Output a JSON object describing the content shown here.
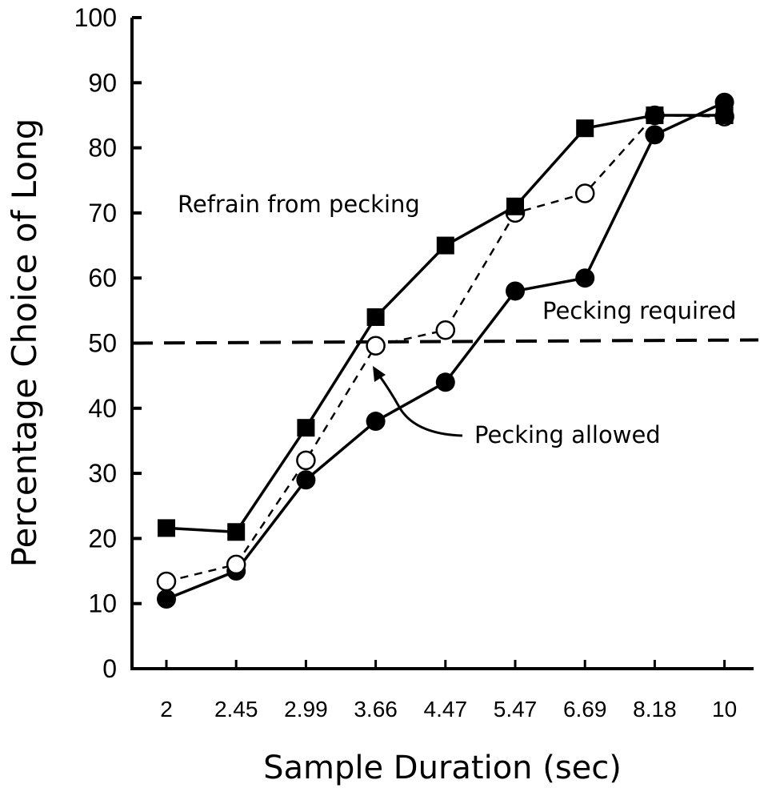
{
  "chart_data": {
    "type": "line",
    "xlabel": "Sample Duration (sec)",
    "ylabel": "Percentage Choice of Long",
    "categories": [
      "2",
      "2.45",
      "2.99",
      "3.66",
      "4.47",
      "5.47",
      "6.69",
      "8.18",
      "10"
    ],
    "ylim": [
      0,
      100
    ],
    "yticks": [
      0,
      10,
      20,
      30,
      40,
      50,
      60,
      70,
      80,
      90,
      100
    ],
    "grid": false,
    "reference_line": {
      "y": 50,
      "style": "dashed"
    },
    "series": [
      {
        "name": "Refrain from pecking",
        "marker": "filled-square",
        "line": "solid",
        "values": [
          21.6,
          21,
          37,
          54,
          65,
          71,
          83,
          85,
          85
        ]
      },
      {
        "name": "Pecking required",
        "marker": "filled-circle",
        "line": "solid",
        "values": [
          10.7,
          15,
          29,
          38,
          44,
          58,
          60,
          82,
          87
        ]
      },
      {
        "name": "Pecking allowed",
        "marker": "open-circle",
        "line": "dashed",
        "values": [
          13.4,
          16,
          32,
          49.6,
          52,
          70,
          73,
          85,
          84.8
        ]
      }
    ],
    "annotations": [
      {
        "text": "Refrain from pecking"
      },
      {
        "text": "Pecking required"
      },
      {
        "text": "Pecking allowed"
      }
    ]
  }
}
